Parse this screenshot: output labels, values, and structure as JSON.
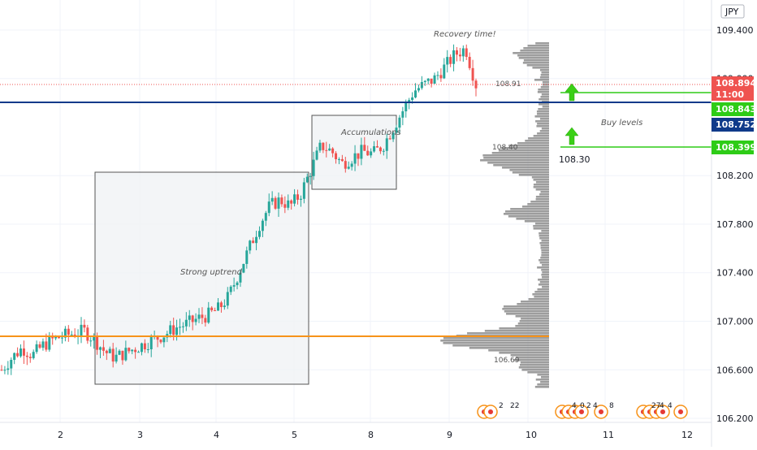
{
  "symbol_currency": "JPY",
  "chart_data": {
    "type": "candlestick",
    "x_tick_labels": [
      "2",
      "3",
      "4",
      "5",
      "8",
      "9",
      "10",
      "11",
      "12"
    ],
    "y_tick_labels": [
      "109.400",
      "109.000",
      "108.200",
      "107.800",
      "107.400",
      "107.000",
      "106.600",
      "106.200"
    ],
    "y_ticks": [
      109.4,
      109.0,
      108.2,
      107.8,
      107.4,
      107.0,
      106.6,
      106.2
    ],
    "ylim": [
      106.18,
      109.46
    ],
    "price_tags": [
      {
        "value": "108.894",
        "sub": "11:00",
        "color": "#ef5350"
      },
      {
        "value": "108.843",
        "color": "#2ecc17"
      },
      {
        "value": "108.752",
        "color": "#0f3a8a"
      },
      {
        "value": "108.399",
        "color": "#2ecc17"
      }
    ],
    "levels": {
      "last_price": 108.894,
      "buy_level_1": 108.843,
      "horizontal_blue": 108.752,
      "buy_level_2": 108.399,
      "support_orange": 106.88
    },
    "annotations": {
      "recovery": "Recovery time!",
      "accumulations": "Accumulations",
      "uptrend": "Strong uptrend",
      "buy_levels": "Buy levels",
      "buy_price": "108.30"
    },
    "volume_profile_labels": {
      "top": "108.91",
      "mid": "108.40",
      "bottom": "106.69"
    },
    "event_labels": [
      "2",
      "22",
      "4",
      "0",
      "2",
      "4",
      "8",
      "27",
      "4",
      "4"
    ],
    "colors": {
      "up": "#26a69a",
      "down": "#ef5350",
      "profile": "#8c8c8c",
      "orange": "#f7931a",
      "blue": "#0f3a8a",
      "green": "#2ecc17"
    },
    "candles_close_path": [
      106.6,
      106.7,
      106.78,
      106.72,
      106.8,
      106.85,
      106.88,
      106.9,
      106.92,
      106.85,
      106.75,
      106.7,
      106.74,
      106.78,
      106.82,
      106.86,
      106.9,
      106.95,
      106.98,
      107.02,
      107.05,
      107.1,
      107.2,
      107.4,
      107.6,
      107.8,
      107.95,
      108.0,
      107.95,
      108.05,
      108.25,
      108.45,
      108.4,
      108.3,
      108.35,
      108.4,
      108.38,
      108.45,
      108.6,
      108.75,
      108.9,
      108.95,
      109.0,
      109.1,
      109.2,
      109.25,
      108.95
    ]
  }
}
